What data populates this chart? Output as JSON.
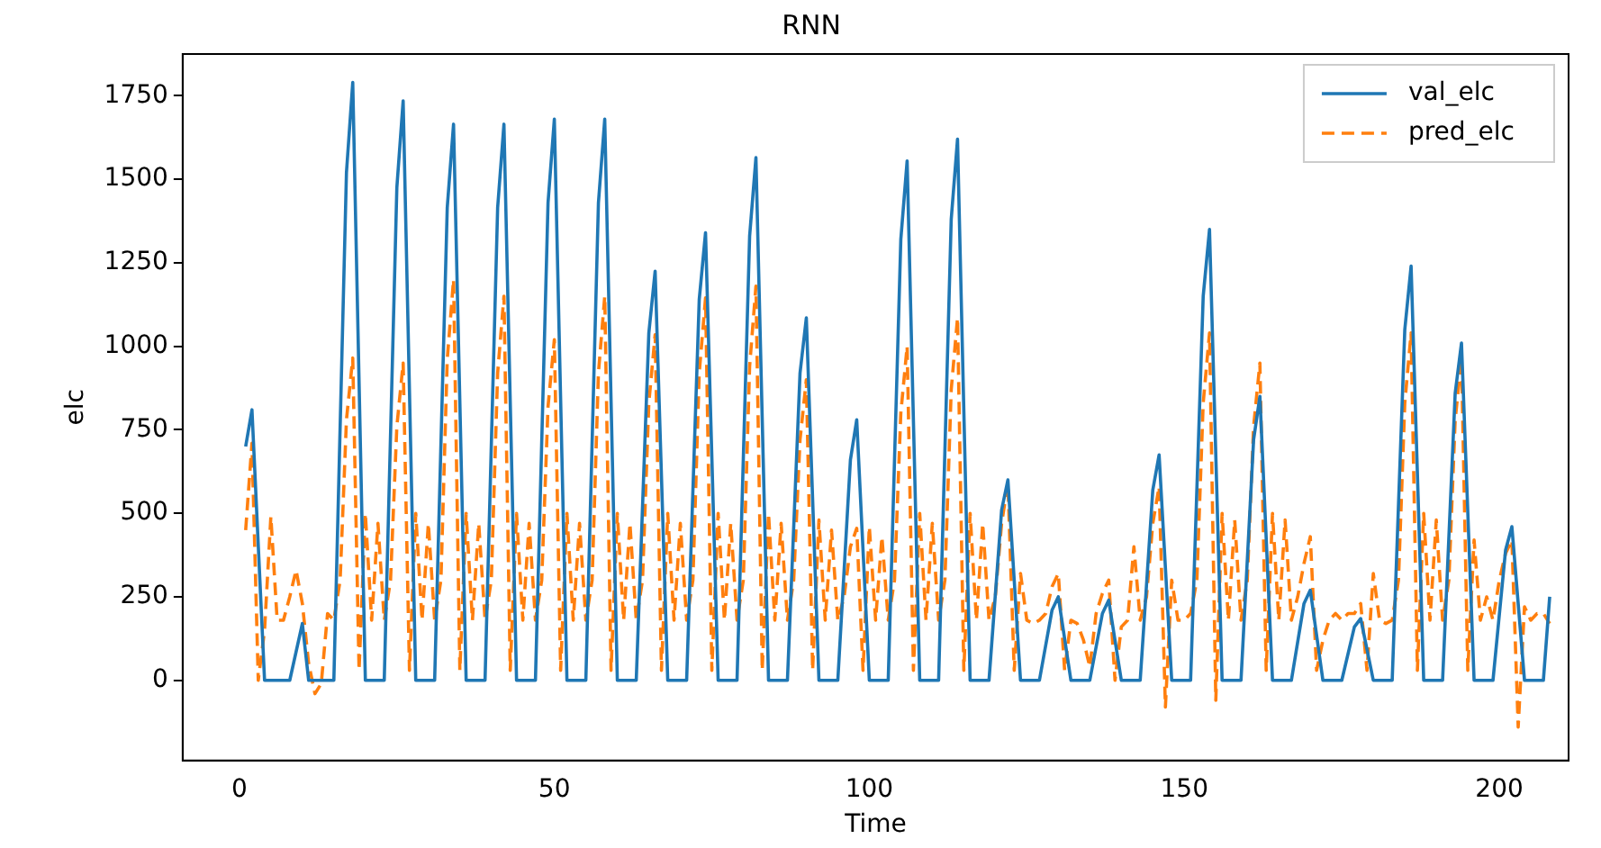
{
  "chart_data": {
    "type": "line",
    "title": "RNN",
    "xlabel": "Time",
    "ylabel": "elc",
    "x": [
      1,
      2,
      3,
      4,
      5,
      6,
      7,
      8,
      9,
      10,
      11,
      12,
      13,
      14,
      15,
      16,
      17,
      18,
      19,
      20,
      21,
      22,
      23,
      24,
      25,
      26,
      27,
      28,
      29,
      30,
      31,
      32,
      33,
      34,
      35,
      36,
      37,
      38,
      39,
      40,
      41,
      42,
      43,
      44,
      45,
      46,
      47,
      48,
      49,
      50,
      51,
      52,
      53,
      54,
      55,
      56,
      57,
      58,
      59,
      60,
      61,
      62,
      63,
      64,
      65,
      66,
      67,
      68,
      69,
      70,
      71,
      72,
      73,
      74,
      75,
      76,
      77,
      78,
      79,
      80,
      81,
      82,
      83,
      84,
      85,
      86,
      87,
      88,
      89,
      90,
      91,
      92,
      93,
      94,
      95,
      96,
      97,
      98,
      99,
      100,
      101,
      102,
      103,
      104,
      105,
      106,
      107,
      108,
      109,
      110,
      111,
      112,
      113,
      114,
      115,
      116,
      117,
      118,
      119,
      120,
      121,
      122,
      123,
      124,
      125,
      126,
      127,
      128,
      129,
      130,
      131,
      132,
      133,
      134,
      135,
      136,
      137,
      138,
      139,
      140,
      141,
      142,
      143,
      144,
      145,
      146,
      147,
      148,
      149,
      150,
      151,
      152,
      153,
      154,
      155,
      156,
      157,
      158,
      159,
      160,
      161,
      162,
      163,
      164,
      165,
      166,
      167,
      168,
      169,
      170,
      171,
      172,
      173,
      174,
      175,
      176,
      177,
      178,
      179,
      180,
      181,
      182,
      183,
      184,
      185,
      186,
      187,
      188,
      189,
      190,
      191,
      192,
      193,
      194,
      195,
      196,
      197,
      198,
      199,
      200,
      201,
      202,
      203,
      204,
      205,
      206,
      207,
      208
    ],
    "series": [
      {
        "name": "val_elc",
        "color": "#1f77b4",
        "line_style": "solid",
        "x": [
          1,
          2,
          4,
          8,
          10,
          11,
          15,
          17,
          18,
          20,
          23,
          25,
          26,
          28,
          31,
          33,
          34,
          36,
          39,
          41,
          42,
          44,
          47,
          49,
          50,
          52,
          55,
          57,
          58,
          60,
          63,
          65,
          66,
          68,
          71,
          73,
          74,
          76,
          79,
          81,
          82,
          84,
          87,
          89,
          90,
          92,
          95,
          97,
          98,
          100,
          103,
          105,
          106,
          108,
          111,
          113,
          114,
          116,
          119,
          121,
          122,
          124,
          127,
          129,
          130,
          132,
          135,
          137,
          138,
          140,
          143,
          145,
          146,
          148,
          151,
          153,
          154,
          156,
          159,
          161,
          162,
          164,
          167,
          169,
          170,
          172,
          175,
          177,
          178,
          180,
          183,
          185,
          186,
          188,
          191,
          193,
          194,
          196,
          199,
          201,
          202,
          204,
          207,
          208
        ],
        "values": [
          700,
          810,
          0,
          0,
          170,
          0,
          0,
          1520,
          1790,
          0,
          0,
          1475,
          1735,
          0,
          0,
          1415,
          1665,
          0,
          0,
          1415,
          1665,
          0,
          0,
          1430,
          1680,
          0,
          0,
          1430,
          1680,
          0,
          0,
          1040,
          1225,
          0,
          0,
          1140,
          1340,
          0,
          0,
          1330,
          1565,
          0,
          0,
          920,
          1085,
          0,
          0,
          660,
          780,
          0,
          0,
          1320,
          1555,
          0,
          0,
          1380,
          1620,
          0,
          0,
          510,
          600,
          0,
          0,
          210,
          250,
          0,
          0,
          200,
          240,
          0,
          0,
          570,
          675,
          0,
          0,
          1150,
          1350,
          0,
          0,
          720,
          850,
          0,
          0,
          230,
          270,
          0,
          0,
          160,
          185,
          0,
          0,
          1050,
          1240,
          0,
          0,
          860,
          1010,
          0,
          0,
          390,
          460,
          0,
          0,
          250
        ]
      },
      {
        "name": "pred_elc",
        "color": "#ff7f0e",
        "line_style": "dashed",
        "values": [
          450,
          710,
          0,
          150,
          490,
          180,
          180,
          250,
          330,
          230,
          50,
          -40,
          -10,
          200,
          180,
          300,
          780,
          965,
          30,
          500,
          180,
          470,
          180,
          300,
          760,
          950,
          30,
          500,
          180,
          470,
          180,
          300,
          960,
          1200,
          30,
          500,
          180,
          470,
          180,
          300,
          920,
          1150,
          30,
          500,
          180,
          470,
          180,
          300,
          820,
          1020,
          30,
          500,
          180,
          470,
          180,
          300,
          920,
          1150,
          30,
          500,
          180,
          470,
          180,
          300,
          830,
          1035,
          30,
          500,
          180,
          470,
          180,
          300,
          920,
          1145,
          30,
          500,
          180,
          470,
          180,
          300,
          940,
          1180,
          30,
          500,
          180,
          470,
          180,
          300,
          720,
          900,
          30,
          480,
          180,
          450,
          180,
          250,
          400,
          455,
          30,
          460,
          180,
          430,
          180,
          300,
          800,
          1000,
          30,
          500,
          180,
          470,
          180,
          300,
          870,
          1085,
          30,
          500,
          180,
          470,
          180,
          250,
          470,
          590,
          30,
          320,
          180,
          170,
          180,
          200,
          280,
          320,
          30,
          180,
          170,
          120,
          40,
          200,
          260,
          300,
          0,
          160,
          180,
          400,
          180,
          250,
          470,
          580,
          -80,
          300,
          180,
          180,
          200,
          300,
          830,
          1040,
          -60,
          500,
          180,
          480,
          180,
          300,
          760,
          950,
          30,
          500,
          180,
          480,
          180,
          250,
          350,
          430,
          30,
          120,
          180,
          200,
          180,
          200,
          200,
          230,
          30,
          320,
          180,
          170,
          180,
          300,
          830,
          1040,
          30,
          500,
          180,
          480,
          180,
          300,
          780,
          965,
          30,
          420,
          180,
          250,
          180,
          300,
          380,
          420,
          -140,
          220,
          180,
          200,
          200,
          170
        ]
      }
    ],
    "xlim": [
      -9,
      211
    ],
    "ylim": [
      -240,
      1875
    ],
    "xticks": [
      0,
      50,
      100,
      150,
      200
    ],
    "yticks": [
      0,
      250,
      500,
      750,
      1000,
      1250,
      1500,
      1750
    ],
    "legend": "top right",
    "grid": false,
    "marker": "none"
  }
}
